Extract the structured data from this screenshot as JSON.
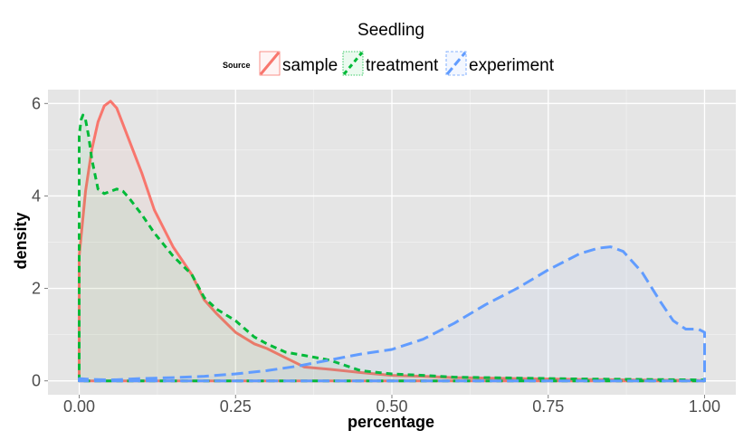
{
  "chart_data": {
    "type": "area",
    "title": "Seedling",
    "xlabel": "percentage",
    "ylabel": "density",
    "xlim": [
      -0.05,
      1.05
    ],
    "ylim": [
      -0.3,
      6.3
    ],
    "x_ticks": [
      0.0,
      0.25,
      0.5,
      0.75,
      1.0
    ],
    "x_tick_labels": [
      "0.00",
      "0.25",
      "0.50",
      "0.75",
      "1.00"
    ],
    "y_ticks": [
      0,
      2,
      4,
      6
    ],
    "y_tick_labels": [
      "0",
      "2",
      "4",
      "6"
    ],
    "grid": true,
    "panel_background": "#e5e5e5",
    "legend": {
      "title": "Source",
      "position": "top"
    },
    "series": [
      {
        "name": "sample",
        "color": "#f8766d",
        "linetype": "solid",
        "x": [
          0.0,
          0.0,
          0.005,
          0.01,
          0.02,
          0.03,
          0.04,
          0.05,
          0.06,
          0.08,
          0.1,
          0.12,
          0.15,
          0.18,
          0.2,
          0.22,
          0.25,
          0.28,
          0.3,
          0.33,
          0.36,
          0.4,
          0.45,
          0.5,
          0.55,
          0.6,
          0.7,
          0.8,
          0.9,
          1.0,
          1.0
        ],
        "y": [
          0.0,
          2.7,
          3.4,
          4.1,
          5.0,
          5.6,
          5.95,
          6.05,
          5.9,
          5.2,
          4.5,
          3.7,
          2.9,
          2.3,
          1.75,
          1.45,
          1.05,
          0.8,
          0.7,
          0.5,
          0.3,
          0.25,
          0.18,
          0.12,
          0.1,
          0.07,
          0.05,
          0.03,
          0.02,
          0.01,
          0.0
        ]
      },
      {
        "name": "treatment",
        "color": "#00ba38",
        "linetype": "dashed",
        "x": [
          0.0,
          0.0,
          0.003,
          0.006,
          0.01,
          0.015,
          0.02,
          0.03,
          0.04,
          0.05,
          0.06,
          0.07,
          0.08,
          0.1,
          0.12,
          0.15,
          0.18,
          0.2,
          0.22,
          0.25,
          0.28,
          0.3,
          0.33,
          0.36,
          0.4,
          0.45,
          0.5,
          0.55,
          0.6,
          0.7,
          0.8,
          0.9,
          1.0,
          1.0
        ],
        "y": [
          0.0,
          5.3,
          5.65,
          5.75,
          5.65,
          5.3,
          4.8,
          4.15,
          4.05,
          4.1,
          4.15,
          4.1,
          3.95,
          3.6,
          3.2,
          2.7,
          2.3,
          1.8,
          1.55,
          1.3,
          0.95,
          0.8,
          0.62,
          0.55,
          0.45,
          0.22,
          0.15,
          0.12,
          0.08,
          0.06,
          0.04,
          0.03,
          0.02,
          0.0
        ]
      },
      {
        "name": "experiment",
        "color": "#619cff",
        "linetype": "longdash",
        "x": [
          0.0,
          0.0,
          0.02,
          0.05,
          0.1,
          0.15,
          0.2,
          0.25,
          0.3,
          0.35,
          0.4,
          0.45,
          0.5,
          0.55,
          0.6,
          0.65,
          0.7,
          0.75,
          0.8,
          0.83,
          0.85,
          0.87,
          0.9,
          0.93,
          0.95,
          0.97,
          0.99,
          1.0,
          1.0
        ],
        "y": [
          0.0,
          0.05,
          0.03,
          0.02,
          0.05,
          0.07,
          0.1,
          0.15,
          0.22,
          0.32,
          0.45,
          0.58,
          0.68,
          0.9,
          1.25,
          1.65,
          2.0,
          2.4,
          2.75,
          2.87,
          2.9,
          2.8,
          2.35,
          1.7,
          1.3,
          1.12,
          1.12,
          1.05,
          0.0
        ]
      }
    ]
  }
}
